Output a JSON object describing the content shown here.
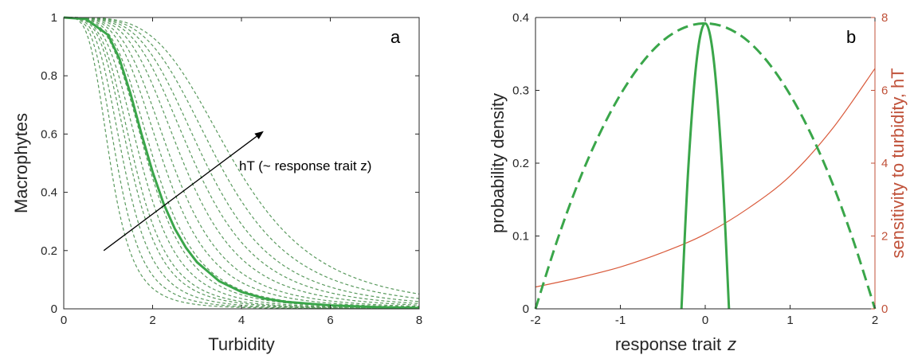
{
  "chart_data": [
    {
      "panel": "a",
      "type": "line",
      "xlabel": "Turbidity",
      "ylabel": "Macrophytes",
      "xlim": [
        0,
        8
      ],
      "ylim": [
        0,
        1
      ],
      "xticks": [
        "0",
        "2",
        "4",
        "6",
        "8"
      ],
      "yticks": [
        "0",
        "0.2",
        "0.4",
        "0.6",
        "0.8",
        "1"
      ],
      "annotation": "hT (~ response trait z)",
      "grid": false,
      "colors": {
        "curve": "#3aa64a",
        "dashed": "#5a9a5e",
        "arrow": "#000000"
      },
      "dashed_half_saturation": [
        1.05,
        1.2,
        1.35,
        1.5,
        1.6,
        1.75,
        1.9,
        2.05,
        2.25,
        2.45,
        2.7,
        2.95,
        3.2,
        3.5,
        3.85
      ],
      "dashed_exponent": 4,
      "series": [
        {
          "style": "solid",
          "x": [
            0,
            0.5,
            1.0,
            1.25,
            1.5,
            1.75,
            2.0,
            2.25,
            2.5,
            2.75,
            3.0,
            3.5,
            4.0,
            4.5,
            5.0,
            6.0,
            7.0,
            8.0
          ],
          "y": [
            1.0,
            0.995,
            0.94,
            0.86,
            0.74,
            0.6,
            0.47,
            0.36,
            0.275,
            0.21,
            0.16,
            0.095,
            0.058,
            0.036,
            0.024,
            0.012,
            0.006,
            0.003
          ]
        }
      ],
      "arrow_from": [
        0.9,
        0.2
      ],
      "arrow_to": [
        4.5,
        0.61
      ]
    },
    {
      "panel": "b",
      "type": "line",
      "xlabel": "response trait",
      "xlabel_var": "z",
      "ylabel": "probability density",
      "y2label": "sensitivity to turbidity, hT",
      "xlim": [
        -2,
        2
      ],
      "ylim": [
        0,
        0.4
      ],
      "y2lim": [
        0,
        8
      ],
      "xticks": [
        "-2",
        "-1",
        "0",
        "1",
        "2"
      ],
      "yticks": [
        "0",
        "0.1",
        "0.2",
        "0.3",
        "0.4"
      ],
      "y2ticks": [
        "0",
        "2",
        "4",
        "6",
        "8"
      ],
      "grid": false,
      "colors": {
        "density": "#3aa64a",
        "sensitivity": "#d95a3b",
        "y2axis": "#c0523a"
      },
      "series": [
        {
          "style": "dashed",
          "axis": "left",
          "x": [
            -2.0,
            -1.75,
            -1.5,
            -1.25,
            -1.0,
            -0.75,
            -0.5,
            -0.25,
            0.0,
            0.25,
            0.5,
            0.75,
            1.0,
            1.25,
            1.5,
            1.75,
            2.0
          ],
          "y": [
            0.0,
            0.092,
            0.172,
            0.239,
            0.294,
            0.337,
            0.368,
            0.386,
            0.392,
            0.386,
            0.368,
            0.337,
            0.294,
            0.239,
            0.172,
            0.092,
            0.0
          ]
        },
        {
          "style": "solid",
          "axis": "left",
          "x": [
            -0.28,
            -0.2,
            -0.1,
            0.0,
            0.1,
            0.2,
            0.28
          ],
          "y": [
            0.0,
            0.192,
            0.342,
            0.392,
            0.342,
            0.192,
            0.0
          ]
        },
        {
          "style": "solid-thin",
          "axis": "right",
          "x": [
            -2.0,
            -1.5,
            -1.0,
            -0.5,
            0.0,
            0.5,
            1.0,
            1.5,
            2.0
          ],
          "y": [
            0.6,
            0.85,
            1.15,
            1.55,
            2.05,
            2.75,
            3.65,
            4.95,
            6.6
          ]
        }
      ]
    }
  ],
  "panels": {
    "a": "a",
    "b": "b"
  }
}
